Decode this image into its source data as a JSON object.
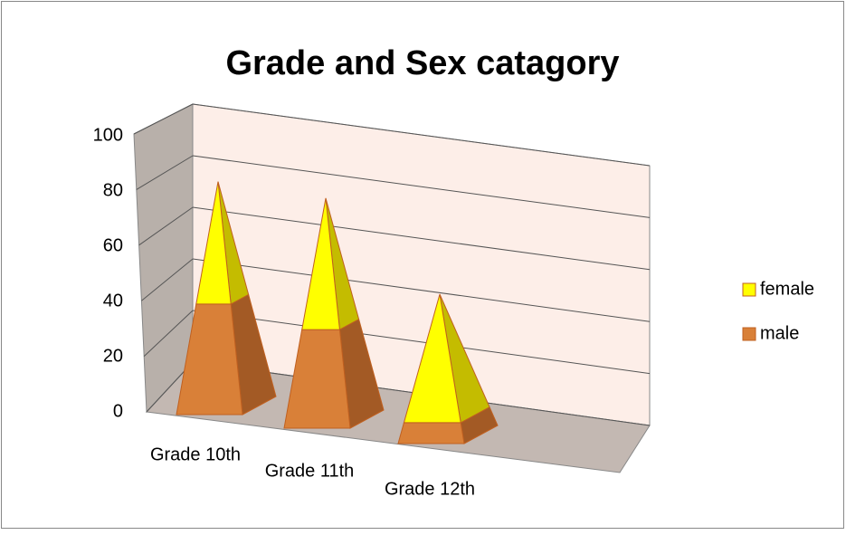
{
  "chart_data": {
    "type": "pyramid",
    "title": "Grade and Sex catagory",
    "categories": [
      "Grade 10th",
      "Grade 11th",
      "Grade 12th"
    ],
    "series": [
      {
        "name": "male",
        "color": "#d98038",
        "values": [
          37,
          33,
          7
        ]
      },
      {
        "name": "female",
        "color": "#ffff00",
        "values": [
          41,
          44,
          43
        ]
      }
    ],
    "stacked": true,
    "ylim": [
      0,
      100
    ],
    "yticks": [
      0,
      20,
      40,
      60,
      80,
      100
    ],
    "grid": true,
    "legend": "right"
  }
}
